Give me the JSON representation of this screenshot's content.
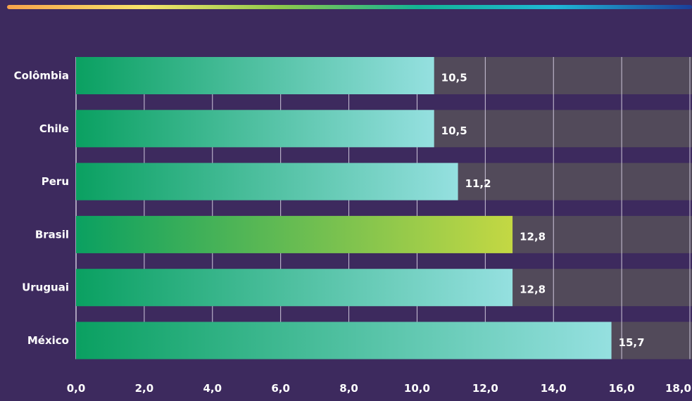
{
  "chart_data": {
    "type": "bar",
    "orientation": "horizontal",
    "categories": [
      "Colômbia",
      "Chile",
      "Peru",
      "Brasil",
      "Uruguai",
      "México"
    ],
    "values": [
      10.5,
      10.5,
      11.2,
      12.8,
      12.8,
      15.7
    ],
    "value_labels": [
      "10,5",
      "10,5",
      "11,2",
      "12,8",
      "12,8",
      "15,7"
    ],
    "xlim": [
      0,
      18
    ],
    "xticks": [
      0,
      2,
      4,
      6,
      8,
      10,
      12,
      14,
      16,
      18
    ],
    "xtick_labels": [
      "0,0",
      "2,0",
      "4,0",
      "6,0",
      "8,0",
      "10,0",
      "12,0",
      "14,0",
      "16,0",
      "18,0"
    ],
    "highlight": "Brasil",
    "grid": true,
    "title": "",
    "xlabel": "",
    "ylabel": ""
  },
  "colors": {
    "background": "#3d2a5e",
    "track": "#524a5a",
    "grid": "#cfc8dc",
    "bar_start": "#0aa061",
    "bar_end": "#95e0e0",
    "highlight_start": "#0aa061",
    "highlight_end": "#c4d843",
    "top_rule": [
      "#f6a24b",
      "#f7e36a",
      "#8cc84b",
      "#13b394",
      "#1fb6d6",
      "#1a3f9b"
    ]
  }
}
